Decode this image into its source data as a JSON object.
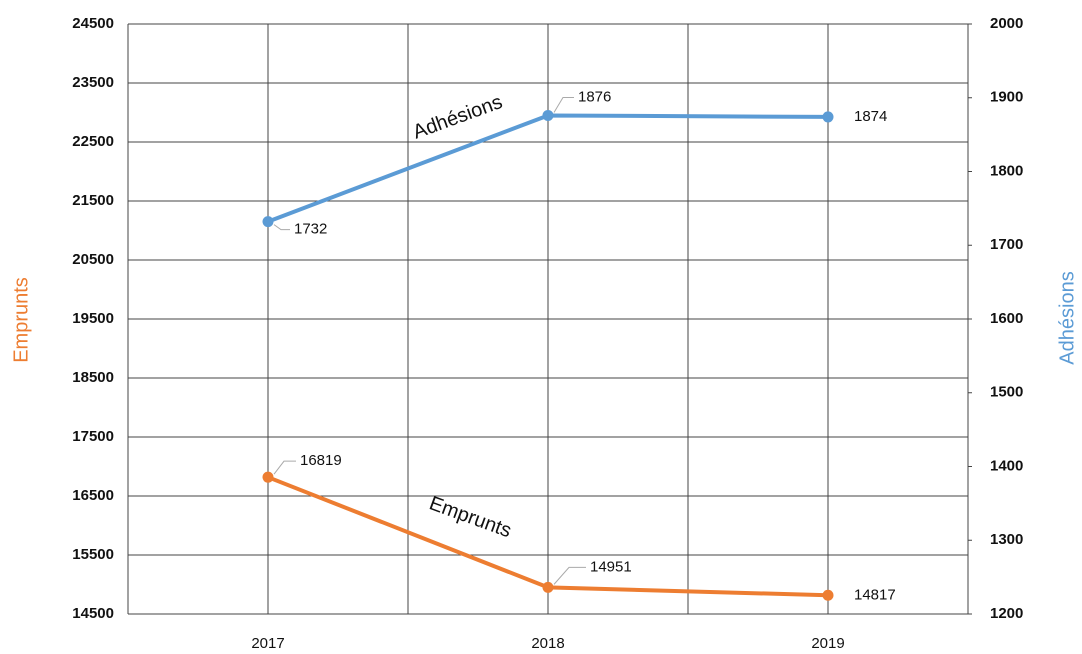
{
  "chart_data": {
    "type": "line",
    "categories": [
      "2017",
      "2018",
      "2019"
    ],
    "ylabel": "Emprunts",
    "y2label": "Adhésions",
    "series": [
      {
        "name": "Emprunts",
        "color": "#ed7d31",
        "values": [
          16819,
          14951,
          14817
        ]
      },
      {
        "name": "Adhésions",
        "color": "#5b9bd5",
        "values": [
          1732,
          1876,
          1874
        ],
        "axis": "y2"
      }
    ],
    "ylim": [
      14500,
      24500
    ],
    "yticks": [
      14500,
      15500,
      16500,
      17500,
      18500,
      19500,
      20500,
      21500,
      22500,
      23500,
      24500
    ],
    "y2lim": [
      1200,
      2000
    ],
    "y2ticks": [
      1200,
      1300,
      1400,
      1500,
      1600,
      1700,
      1800,
      1900,
      2000
    ],
    "grid": true
  }
}
